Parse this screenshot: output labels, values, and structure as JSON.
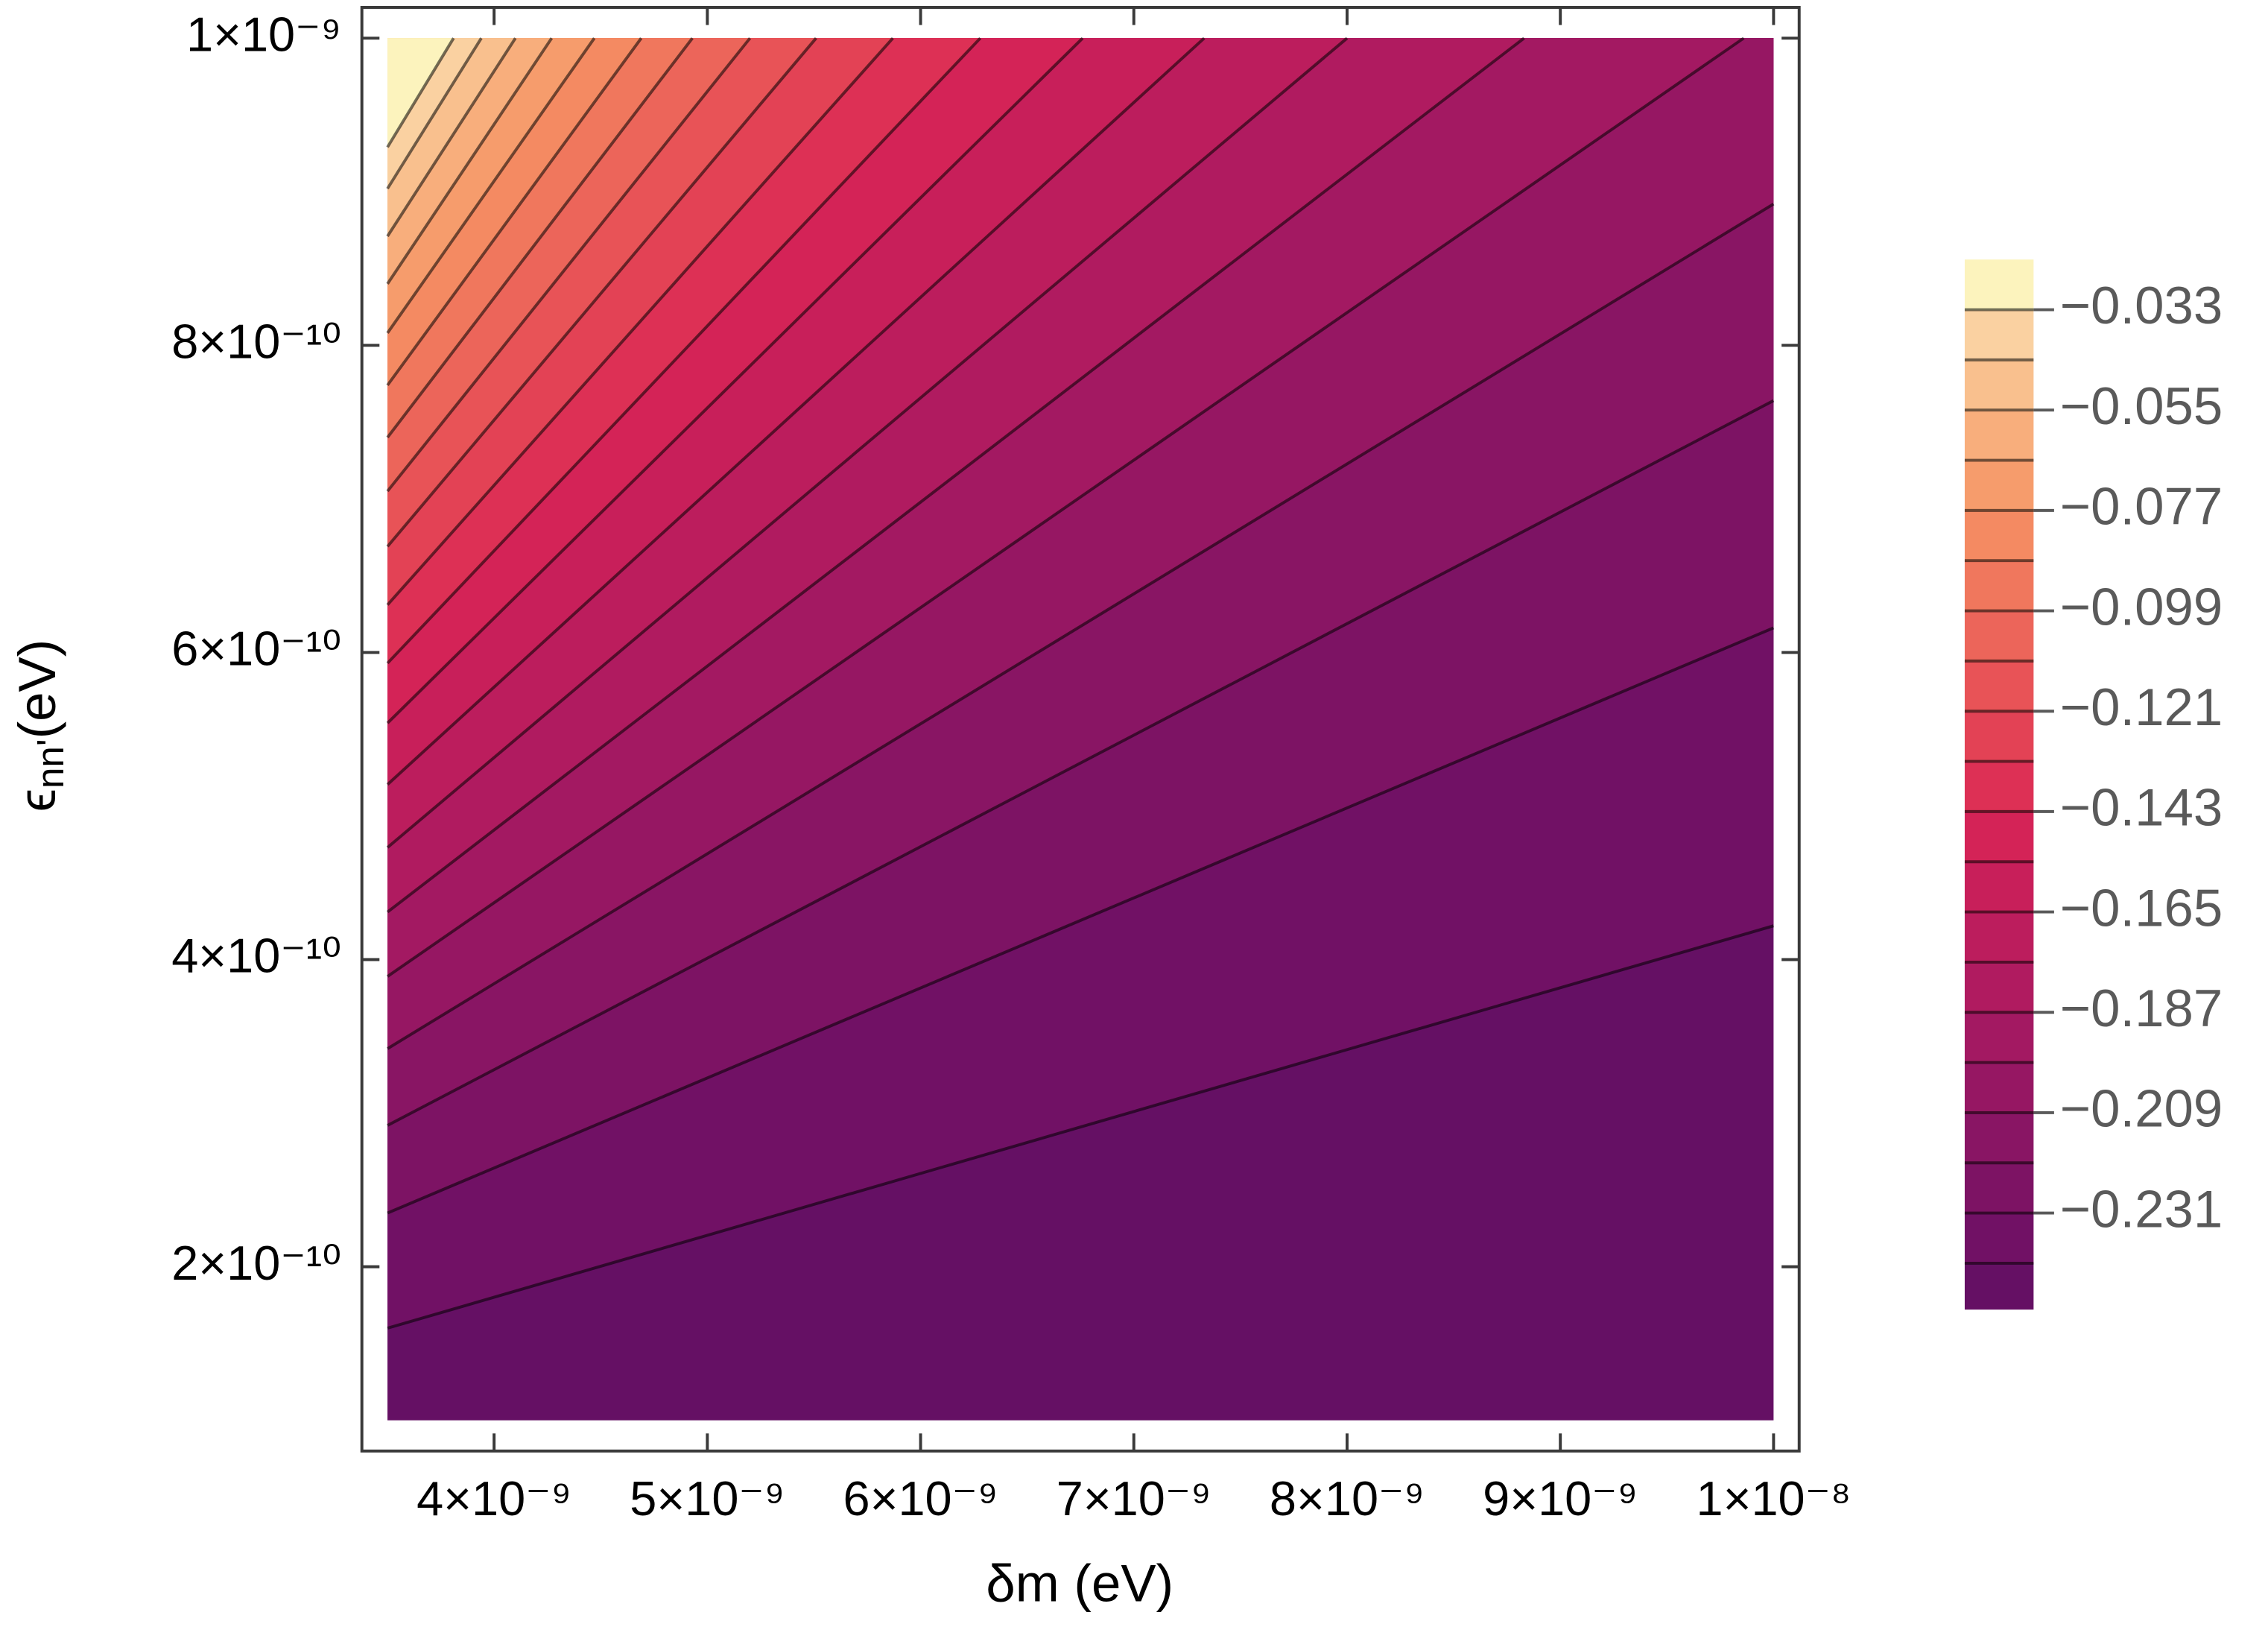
{
  "chart_data": {
    "type": "contour",
    "xlabel": "δm (eV)",
    "ylabel": {
      "symbol": "ϵ",
      "subscript": "nn'",
      "unit": "(eV)"
    },
    "xlim": [
      3.38e-09,
      1.012e-08
    ],
    "ylim": [
      8e-11,
      1.02e-09
    ],
    "domain": {
      "x": [
        3.5e-09,
        1e-08
      ],
      "y": [
        1e-10,
        1e-09
      ]
    },
    "xticks": [
      {
        "value": 4e-09,
        "label": "4×10⁻⁹"
      },
      {
        "value": 5e-09,
        "label": "5×10⁻⁹"
      },
      {
        "value": 6e-09,
        "label": "6×10⁻⁹"
      },
      {
        "value": 7e-09,
        "label": "7×10⁻⁹"
      },
      {
        "value": 8e-09,
        "label": "8×10⁻⁹"
      },
      {
        "value": 9e-09,
        "label": "9×10⁻⁹"
      },
      {
        "value": 1e-08,
        "label": "1×10⁻⁸"
      }
    ],
    "yticks": [
      {
        "value": 2e-10,
        "label": "2×10⁻¹⁰"
      },
      {
        "value": 4e-10,
        "label": "4×10⁻¹⁰"
      },
      {
        "value": 6e-10,
        "label": "6×10⁻¹⁰"
      },
      {
        "value": 8e-10,
        "label": "8×10⁻¹⁰"
      },
      {
        "value": 1e-09,
        "label": "1×10⁻⁹"
      }
    ],
    "levels": [
      -0.242,
      -0.231,
      -0.22,
      -0.209,
      -0.198,
      -0.187,
      -0.176,
      -0.165,
      -0.154,
      -0.143,
      -0.132,
      -0.121,
      -0.11,
      -0.099,
      -0.088,
      -0.077,
      -0.066,
      -0.055,
      -0.044,
      -0.033
    ],
    "colors": [
      "#651064",
      "#711165",
      "#7d1364",
      "#891564",
      "#961763",
      "#a31962",
      "#b01b60",
      "#bc1d5d",
      "#c81f5a",
      "#d42357",
      "#dd3055",
      "#e34255",
      "#e85357",
      "#ec655a",
      "#f0775d",
      "#f48a62",
      "#f69c6c",
      "#f8ae7c",
      "#f9c08e",
      "#fad1a1",
      "#fcf3bd"
    ],
    "contours": [
      {
        "x": [
          3.5e-09,
          1e-08
        ],
        "y": [
          1.6e-10,
          4.22e-10
        ]
      },
      {
        "x": [
          3.5e-09,
          1e-08
        ],
        "y": [
          2.35e-10,
          6.16e-10
        ]
      },
      {
        "x": [
          3.5e-09,
          1e-08
        ],
        "y": [
          2.92e-10,
          7.64e-10
        ]
      },
      {
        "x": [
          3.5e-09,
          1e-08
        ],
        "y": [
          3.42e-10,
          8.92e-10
        ]
      },
      {
        "x": [
          3.5e-09,
          9.86e-09
        ],
        "y": [
          3.89e-10,
          1e-09
        ]
      },
      {
        "x": [
          3.5e-09,
          8.83e-09
        ],
        "y": [
          4.31e-10,
          1e-09
        ]
      },
      {
        "x": [
          3.5e-09,
          8e-09
        ],
        "y": [
          4.73e-10,
          1e-09
        ]
      },
      {
        "x": [
          3.5e-09,
          7.33e-09
        ],
        "y": [
          5.14e-10,
          1e-09
        ]
      },
      {
        "x": [
          3.5e-09,
          6.76e-09
        ],
        "y": [
          5.54e-10,
          1e-09
        ]
      },
      {
        "x": [
          3.5e-09,
          6.28e-09
        ],
        "y": [
          5.93e-10,
          1e-09
        ]
      },
      {
        "x": [
          3.5e-09,
          5.87e-09
        ],
        "y": [
          6.31e-10,
          1e-09
        ]
      },
      {
        "x": [
          3.5e-09,
          5.51e-09
        ],
        "y": [
          6.69e-10,
          1e-09
        ]
      },
      {
        "x": [
          3.5e-09,
          5.2e-09
        ],
        "y": [
          7.05e-10,
          1e-09
        ]
      },
      {
        "x": [
          3.5e-09,
          4.93e-09
        ],
        "y": [
          7.4e-10,
          1e-09
        ]
      },
      {
        "x": [
          3.5e-09,
          4.69e-09
        ],
        "y": [
          7.74e-10,
          1e-09
        ]
      },
      {
        "x": [
          3.5e-09,
          4.47e-09
        ],
        "y": [
          8.08e-10,
          1e-09
        ]
      },
      {
        "x": [
          3.5e-09,
          4.27e-09
        ],
        "y": [
          8.4e-10,
          1e-09
        ]
      },
      {
        "x": [
          3.5e-09,
          4.1e-09
        ],
        "y": [
          8.71e-10,
          1e-09
        ]
      },
      {
        "x": [
          3.5e-09,
          3.94e-09
        ],
        "y": [
          9.02e-10,
          1e-09
        ]
      },
      {
        "x": [
          3.5e-09,
          3.81e-09
        ],
        "y": [
          9.29e-10,
          1e-09
        ]
      }
    ],
    "colorbar_lim": [
      -0.252,
      -0.022
    ],
    "colorbar_ticks": [
      {
        "value": -0.033,
        "label": "−0.033"
      },
      {
        "value": -0.055,
        "label": "−0.055"
      },
      {
        "value": -0.077,
        "label": "−0.077"
      },
      {
        "value": -0.099,
        "label": "−0.099"
      },
      {
        "value": -0.121,
        "label": "−0.121"
      },
      {
        "value": -0.143,
        "label": "−0.143"
      },
      {
        "value": -0.165,
        "label": "−0.165"
      },
      {
        "value": -0.187,
        "label": "−0.187"
      },
      {
        "value": -0.209,
        "label": "−0.209"
      },
      {
        "value": -0.231,
        "label": "−0.231"
      }
    ]
  }
}
